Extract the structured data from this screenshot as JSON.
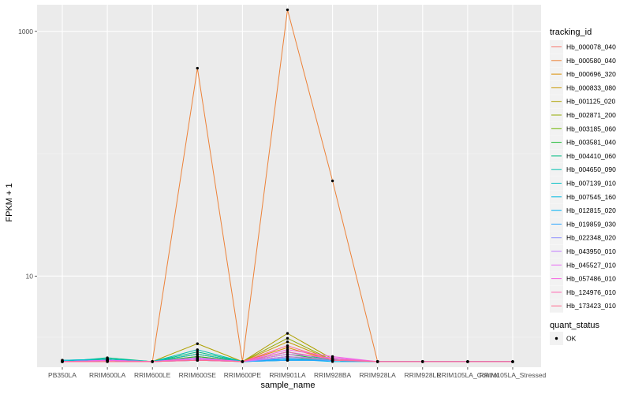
{
  "chart_data": {
    "type": "line",
    "xlabel": "sample_name",
    "ylabel": "FPKM + 1",
    "y_scale": "log10",
    "ylim": [
      1.8,
      1650
    ],
    "y_ticks": [
      10,
      1000
    ],
    "y_tick_labels": [
      "10",
      "1000"
    ],
    "grid": true,
    "categories": [
      "PB350LA",
      "RRIM600LA",
      "RRIM600LE",
      "RRIM600SE",
      "RRIM600PE",
      "RRIM901LA",
      "RRIM928BA",
      "RRIM928LA",
      "RRIM928LE",
      "RRIM105LA_Control",
      "RRIM105LA_Stressed"
    ],
    "legend": {
      "title": "tracking_id",
      "position": "right",
      "swatch_colors": [
        "#F8766D",
        "#EC8239",
        "#DB8E00",
        "#C79800",
        "#AFA100",
        "#93AA00",
        "#6DB300",
        "#1BB931",
        "#00BC81",
        "#00C0AF",
        "#00BFC4",
        "#00BAE0",
        "#00B1F4",
        "#2DA6FF",
        "#8F91FF",
        "#C37CFF",
        "#E76BF3",
        "#F564E3",
        "#FF64B0",
        "#FF6C90"
      ]
    },
    "series": [
      {
        "name": "Hb_000078_040",
        "color": "#F8766D",
        "values": [
          2,
          2,
          2,
          2.1,
          2,
          2.2,
          2.1,
          2,
          2,
          2,
          2
        ]
      },
      {
        "name": "Hb_000580_040",
        "color": "#EC8239",
        "values": [
          2,
          2,
          2,
          500,
          2,
          1500,
          60,
          2,
          2,
          2,
          2
        ]
      },
      {
        "name": "Hb_000696_320",
        "color": "#DB8E00",
        "values": [
          2,
          2.05,
          2,
          2.2,
          2,
          2.6,
          2.05,
          2,
          2,
          2,
          2
        ]
      },
      {
        "name": "Hb_000833_080",
        "color": "#C79800",
        "values": [
          2,
          2.05,
          2,
          2.3,
          2,
          2.9,
          2.05,
          2,
          2,
          2,
          2
        ]
      },
      {
        "name": "Hb_001125_020",
        "color": "#AFA100",
        "values": [
          2,
          2.05,
          2,
          2.8,
          2,
          3.4,
          2.1,
          2,
          2,
          2,
          2
        ]
      },
      {
        "name": "Hb_002871_200",
        "color": "#93AA00",
        "values": [
          2,
          2.05,
          2,
          2.3,
          2,
          3.1,
          2.05,
          2,
          2,
          2,
          2
        ]
      },
      {
        "name": "Hb_003185_060",
        "color": "#6DB300",
        "values": [
          2,
          2.1,
          2,
          2.1,
          2,
          2.2,
          2.05,
          2,
          2,
          2,
          2
        ]
      },
      {
        "name": "Hb_003581_040",
        "color": "#1BB931",
        "values": [
          2,
          2.1,
          2,
          2.2,
          2,
          2.3,
          2.05,
          2,
          2,
          2,
          2
        ]
      },
      {
        "name": "Hb_004410_060",
        "color": "#00BC81",
        "values": [
          2,
          2.15,
          2,
          2.4,
          2,
          2.4,
          2.05,
          2,
          2,
          2,
          2
        ]
      },
      {
        "name": "Hb_004650_090",
        "color": "#00C0AF",
        "values": [
          2.05,
          2.1,
          2,
          2.5,
          2,
          2.1,
          2.05,
          2,
          2,
          2,
          2
        ]
      },
      {
        "name": "Hb_007139_010",
        "color": "#00BFC4",
        "values": [
          2.05,
          2.1,
          2,
          2.3,
          2,
          2.05,
          2.05,
          2,
          2,
          2,
          2
        ]
      },
      {
        "name": "Hb_007545_160",
        "color": "#00BAE0",
        "values": [
          2.05,
          2.05,
          2,
          2.1,
          2,
          2.05,
          2.05,
          2,
          2,
          2,
          2
        ]
      },
      {
        "name": "Hb_012815_020",
        "color": "#00B1F4",
        "values": [
          2,
          2.05,
          2,
          2.05,
          2,
          2.1,
          2,
          2,
          2,
          2,
          2
        ]
      },
      {
        "name": "Hb_019859_030",
        "color": "#2DA6FF",
        "values": [
          2,
          2.05,
          2,
          2.15,
          2,
          2.05,
          2.05,
          2,
          2,
          2,
          2
        ]
      },
      {
        "name": "Hb_022348_020",
        "color": "#8F91FF",
        "values": [
          2,
          2.05,
          2,
          2.05,
          2,
          2.15,
          2.05,
          2,
          2,
          2,
          2
        ]
      },
      {
        "name": "Hb_043950_010",
        "color": "#C37CFF",
        "values": [
          2,
          2.05,
          2,
          2.1,
          2,
          2.2,
          2.1,
          2,
          2,
          2,
          2
        ]
      },
      {
        "name": "Hb_045527_010",
        "color": "#E76BF3",
        "values": [
          2,
          2.05,
          2,
          2.15,
          2,
          2.3,
          2.15,
          2,
          2,
          2,
          2
        ]
      },
      {
        "name": "Hb_057486_010",
        "color": "#F564E3",
        "values": [
          2,
          2.05,
          2,
          2.1,
          2,
          2.5,
          2.2,
          2,
          2,
          2,
          2
        ]
      },
      {
        "name": "Hb_124976_010",
        "color": "#FF64B0",
        "values": [
          2,
          2,
          2,
          2.05,
          2,
          2.4,
          2.1,
          2,
          2,
          2,
          2
        ]
      },
      {
        "name": "Hb_173423_010",
        "color": "#FF6C90",
        "values": [
          2,
          2,
          2,
          2.05,
          2,
          2.7,
          2.05,
          2,
          2,
          2,
          2
        ]
      }
    ],
    "shape_legend": {
      "title": "quant_status",
      "entries": [
        "OK"
      ]
    }
  }
}
